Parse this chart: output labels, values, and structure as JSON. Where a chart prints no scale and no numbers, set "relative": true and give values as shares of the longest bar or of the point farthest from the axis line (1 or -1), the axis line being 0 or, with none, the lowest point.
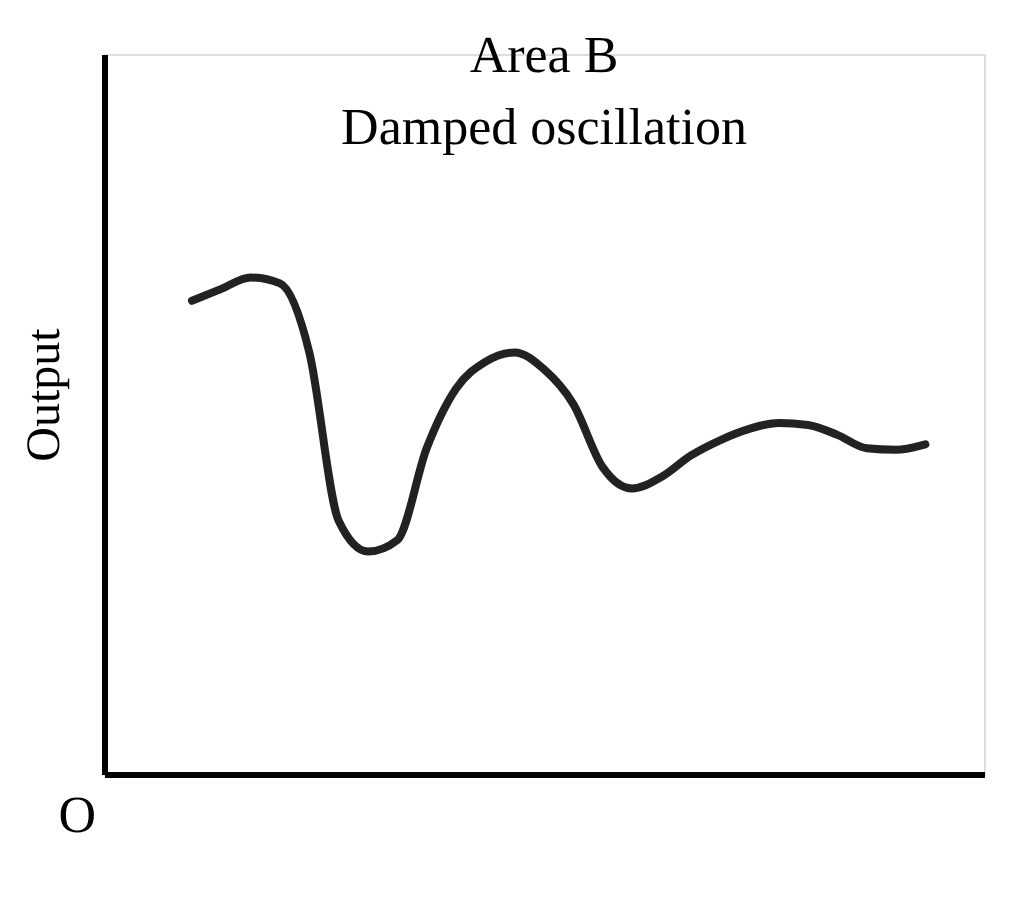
{
  "chart_data": {
    "type": "line",
    "title": "Area B",
    "subtitle": "Damped oscillation",
    "ylabel": "Output",
    "relative": true,
    "annotations": [
      "O"
    ],
    "categories": [
      null,
      null,
      null,
      null,
      null,
      null,
      null,
      null,
      null,
      null,
      null,
      null,
      null,
      null,
      null,
      null,
      null,
      null,
      null,
      null,
      null,
      null,
      null,
      null,
      null,
      null
    ],
    "series": [
      {
        "color": "#222222",
        "values": [
          0.953,
          0.977,
          1.0,
          0.988,
          0.849,
          0.51,
          0.448,
          0.471,
          0.656,
          0.776,
          0.83,
          0.849,
          0.815,
          0.745,
          0.618,
          0.575,
          0.598,
          0.641,
          0.672,
          0.695,
          0.707,
          0.703,
          0.683,
          0.656,
          0.653,
          0.664
        ]
      }
    ],
    "grid": false,
    "marker": "none",
    "line_style": "solid"
  }
}
